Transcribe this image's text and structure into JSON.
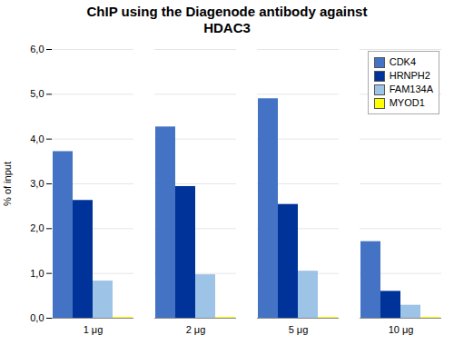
{
  "chart_data": {
    "type": "bar",
    "title": "ChIP using the Diagenode antibody against\nHDAC3",
    "ylabel": "% of input",
    "categories": [
      "1 μg",
      "2 μg",
      "5 μg",
      "10 μg"
    ],
    "series": [
      {
        "name": "CDK4",
        "color": "#4472C4",
        "values": [
          3.72,
          4.27,
          4.9,
          1.71
        ]
      },
      {
        "name": "HRNPH2",
        "color": "#003399",
        "values": [
          2.63,
          2.94,
          2.54,
          0.6
        ]
      },
      {
        "name": "FAM134A",
        "color": "#9DC3E6",
        "values": [
          0.83,
          0.97,
          1.05,
          0.29
        ]
      },
      {
        "name": "MYOD1",
        "color": "#FFFF00",
        "values": [
          0.02,
          0.02,
          0.02,
          0.02
        ]
      }
    ],
    "ylim": [
      0.0,
      6.0
    ],
    "yticks": [
      {
        "value": 0.0,
        "label": "0,0"
      },
      {
        "value": 1.0,
        "label": "1,0"
      },
      {
        "value": 2.0,
        "label": "2,0"
      },
      {
        "value": 3.0,
        "label": "3,0"
      },
      {
        "value": 4.0,
        "label": "4,0"
      },
      {
        "value": 5.0,
        "label": "5,0"
      },
      {
        "value": 6.0,
        "label": "6,0"
      }
    ],
    "grid": true,
    "legend": "upper right"
  }
}
